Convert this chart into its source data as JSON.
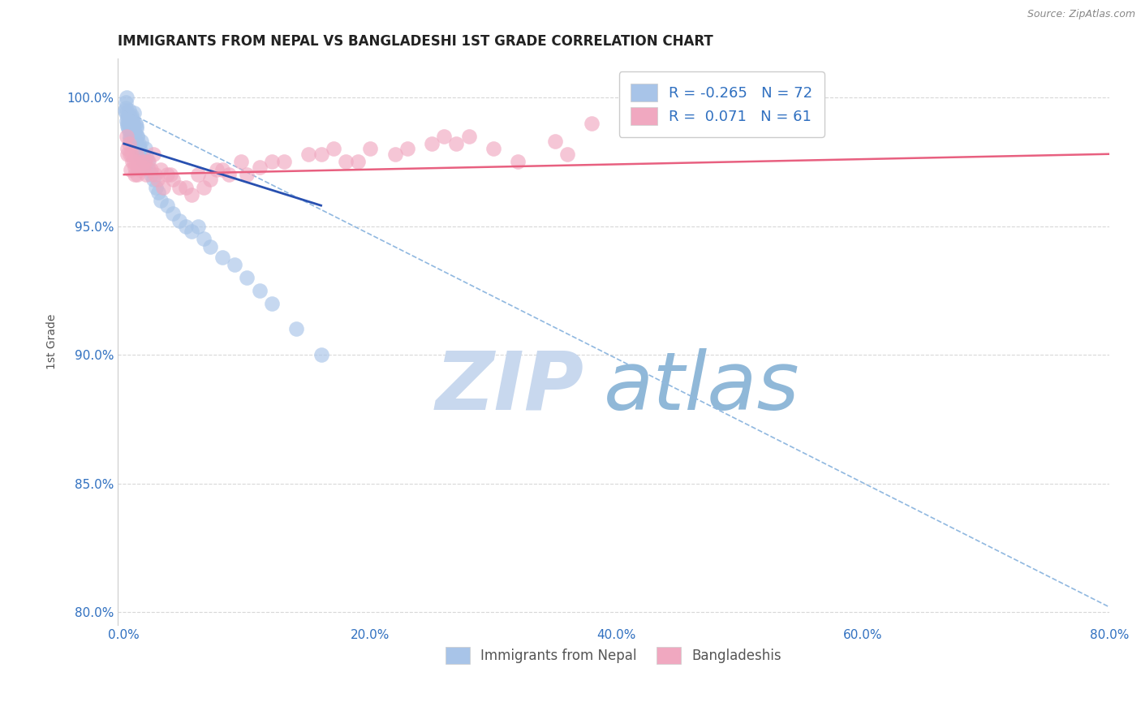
{
  "title": "IMMIGRANTS FROM NEPAL VS BANGLADESHI 1ST GRADE CORRELATION CHART",
  "source": "Source: ZipAtlas.com",
  "ylabel": "1st Grade",
  "x_tick_labels": [
    "0.0%",
    "20.0%",
    "40.0%",
    "60.0%",
    "80.0%"
  ],
  "x_tick_values": [
    0.0,
    20.0,
    40.0,
    60.0,
    80.0
  ],
  "y_tick_labels": [
    "80.0%",
    "85.0%",
    "90.0%",
    "95.0%",
    "100.0%"
  ],
  "y_tick_values": [
    80.0,
    85.0,
    90.0,
    95.0,
    100.0
  ],
  "xlim": [
    -0.5,
    80.0
  ],
  "ylim": [
    79.5,
    101.5
  ],
  "legend_labels": [
    "Immigrants from Nepal",
    "Bangladeshis"
  ],
  "nepal_R": -0.265,
  "nepal_N": 72,
  "bangla_R": 0.071,
  "bangla_N": 61,
  "nepal_color": "#a8c4e8",
  "bangla_color": "#f0a8c0",
  "nepal_line_color": "#2850b0",
  "bangla_line_color": "#e86080",
  "dashed_line_color": "#90b8e0",
  "watermark_zip_color": "#c8d8ee",
  "watermark_atlas_color": "#90b8d8",
  "title_color": "#222222",
  "axis_label_color": "#555555",
  "tick_label_color": "#3070c0",
  "background_color": "#ffffff",
  "nepal_scatter_x": [
    0.1,
    0.15,
    0.2,
    0.25,
    0.3,
    0.35,
    0.4,
    0.45,
    0.5,
    0.55,
    0.6,
    0.65,
    0.7,
    0.75,
    0.8,
    0.85,
    0.9,
    0.95,
    1.0,
    1.1,
    1.2,
    1.3,
    1.4,
    1.5,
    1.6,
    1.7,
    1.8,
    1.9,
    2.0,
    2.2,
    2.4,
    2.6,
    2.8,
    3.0,
    3.5,
    4.0,
    4.5,
    5.0,
    5.5,
    6.0,
    6.5,
    7.0,
    8.0,
    9.0,
    10.0,
    11.0,
    12.0,
    0.12,
    0.18,
    0.22,
    0.28,
    0.32,
    0.38,
    0.42,
    0.48,
    0.52,
    0.58,
    0.62,
    0.68,
    0.72,
    0.78,
    0.82,
    0.88,
    0.92,
    0.98,
    1.05,
    1.15,
    1.25,
    1.35,
    1.45,
    14.0,
    16.0
  ],
  "nepal_scatter_y": [
    99.5,
    99.8,
    100.0,
    99.2,
    99.0,
    98.8,
    99.5,
    99.2,
    98.5,
    99.0,
    99.3,
    98.7,
    99.1,
    98.9,
    99.4,
    98.6,
    98.3,
    99.0,
    98.8,
    98.5,
    98.2,
    98.0,
    98.3,
    97.8,
    97.5,
    98.0,
    97.7,
    97.5,
    97.2,
    97.0,
    96.8,
    96.5,
    96.3,
    96.0,
    95.8,
    95.5,
    95.2,
    95.0,
    94.8,
    95.0,
    94.5,
    94.2,
    93.8,
    93.5,
    93.0,
    92.5,
    92.0,
    99.6,
    99.4,
    99.1,
    98.9,
    99.3,
    98.7,
    99.0,
    98.4,
    98.8,
    98.5,
    99.2,
    98.6,
    99.0,
    98.3,
    98.7,
    98.4,
    98.2,
    98.9,
    98.5,
    98.1,
    97.9,
    97.7,
    97.6,
    91.0,
    90.0
  ],
  "bangla_scatter_x": [
    0.2,
    0.4,
    0.6,
    0.8,
    1.0,
    1.2,
    1.5,
    1.8,
    2.0,
    2.5,
    3.0,
    3.5,
    4.0,
    5.0,
    6.0,
    7.0,
    8.0,
    10.0,
    12.0,
    15.0,
    18.0,
    20.0,
    22.0,
    25.0,
    28.0,
    30.0,
    35.0,
    38.0,
    0.3,
    0.5,
    0.7,
    0.9,
    1.1,
    1.3,
    1.6,
    2.2,
    2.7,
    3.2,
    4.5,
    5.5,
    6.5,
    8.5,
    11.0,
    13.0,
    16.0,
    19.0,
    23.0,
    27.0,
    32.0,
    36.0,
    0.25,
    0.55,
    0.85,
    1.15,
    1.7,
    2.4,
    3.8,
    7.5,
    9.5,
    17.0,
    26.0
  ],
  "bangla_scatter_y": [
    98.5,
    98.2,
    97.8,
    97.5,
    97.8,
    97.5,
    97.3,
    97.0,
    97.5,
    97.0,
    97.2,
    97.0,
    96.8,
    96.5,
    97.0,
    96.8,
    97.2,
    97.0,
    97.5,
    97.8,
    97.5,
    98.0,
    97.8,
    98.2,
    98.5,
    98.0,
    98.3,
    99.0,
    98.0,
    97.8,
    97.5,
    97.3,
    97.0,
    97.2,
    97.5,
    97.2,
    96.8,
    96.5,
    96.5,
    96.2,
    96.5,
    97.0,
    97.3,
    97.5,
    97.8,
    97.5,
    98.0,
    98.2,
    97.5,
    97.8,
    97.8,
    97.2,
    97.0,
    97.3,
    97.5,
    97.8,
    97.0,
    97.2,
    97.5,
    98.0,
    98.5
  ],
  "nepal_line_x0": 0.0,
  "nepal_line_y0": 98.2,
  "nepal_line_x1": 16.0,
  "nepal_line_y1": 95.8,
  "bangla_line_x0": 0.0,
  "bangla_line_y0": 97.0,
  "bangla_line_x1": 80.0,
  "bangla_line_y1": 97.8,
  "dash_line_x0": 0.0,
  "dash_line_y0": 99.5,
  "dash_line_x1": 80.0,
  "dash_line_y1": 80.2
}
